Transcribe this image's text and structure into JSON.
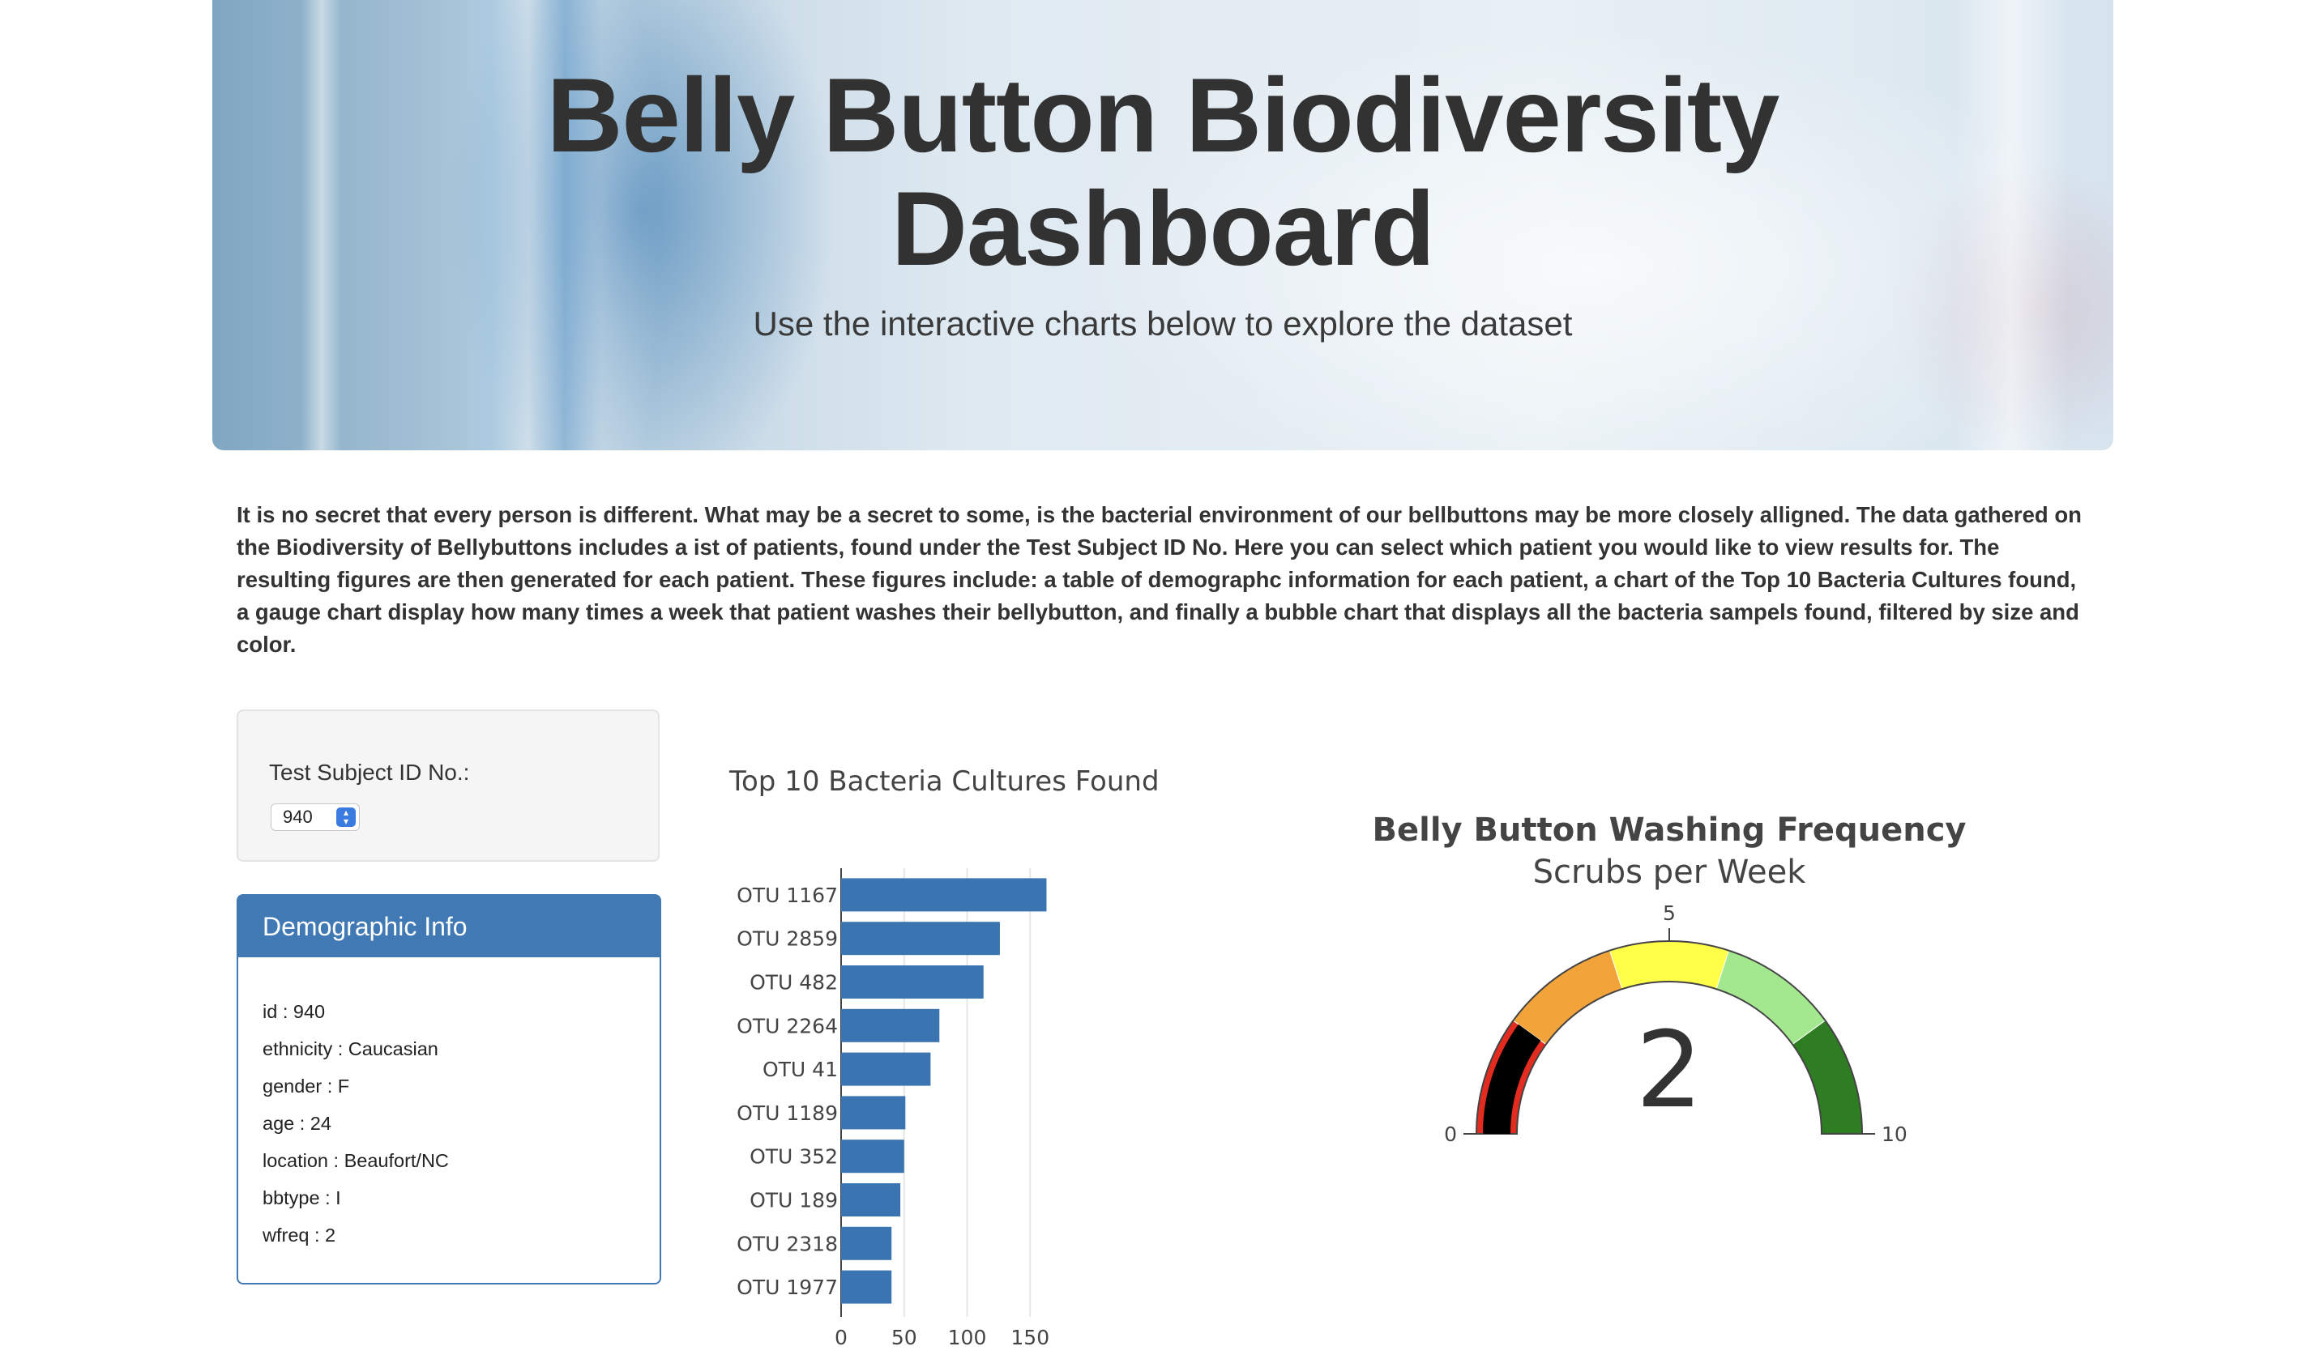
{
  "header": {
    "title_line1": "Belly Button Biodiversity",
    "title_line2": "Dashboard",
    "subtitle": "Use the interactive charts below to explore the dataset"
  },
  "intro": "It is no secret that every person is different. What may be a secret to some, is the bacterial environment of our bellbuttons may be more closely alligned. The data gathered on the Biodiversity of Bellybuttons includes a ist of patients, found under the Test Subject ID No. Here you can select which patient you would like to view results for. The resulting figures are then generated for each patient. These figures include: a table of demographc information for each patient, a chart of the Top 10 Bacteria Cultures found, a gauge chart display how many times a week that patient washes their bellybutton, and finally a bubble chart that displays all the bacteria sampels found, filtered by size and color.",
  "selector": {
    "label": "Test Subject ID No.:",
    "selected": "940"
  },
  "demographics": {
    "heading": "Demographic Info",
    "rows": [
      "id : 940",
      "ethnicity : Caucasian",
      "gender : F",
      "age : 24",
      "location : Beaufort/NC",
      "bbtype : I",
      "wfreq : 2"
    ]
  },
  "colors": {
    "panel_blue": "#4179b4",
    "bar_blue": "#3a74b1"
  },
  "chart_data": [
    {
      "type": "bar",
      "orientation": "horizontal",
      "title": "Top 10 Bacteria Cultures Found",
      "categories": [
        "OTU 1167",
        "OTU 2859",
        "OTU 482",
        "OTU 2264",
        "OTU 41",
        "OTU 1189",
        "OTU 352",
        "OTU 189",
        "OTU 2318",
        "OTU 1977"
      ],
      "values": [
        163,
        126,
        113,
        78,
        71,
        51,
        50,
        47,
        40,
        40
      ],
      "xticks": [
        "0",
        "50",
        "100",
        "150"
      ],
      "xlim": [
        0,
        163
      ],
      "grid": "vertical",
      "color": "#3a74b1"
    },
    {
      "type": "gauge",
      "title": "Belly Button Washing Frequency",
      "subtitle": "Scrubs per Week",
      "value": 2,
      "value_label": "2",
      "range": [
        0,
        10
      ],
      "ticks": [
        "0",
        "5",
        "10"
      ],
      "bar_value": 2,
      "bar_color": "#000000",
      "steps": [
        {
          "range": [
            0,
            2
          ],
          "color": "#e32b1f"
        },
        {
          "range": [
            2,
            4
          ],
          "color": "#f2a33a"
        },
        {
          "range": [
            4,
            6
          ],
          "color": "#ffff4a"
        },
        {
          "range": [
            6,
            8
          ],
          "color": "#a3e88e"
        },
        {
          "range": [
            8,
            10
          ],
          "color": "#2f7d22"
        }
      ]
    }
  ]
}
